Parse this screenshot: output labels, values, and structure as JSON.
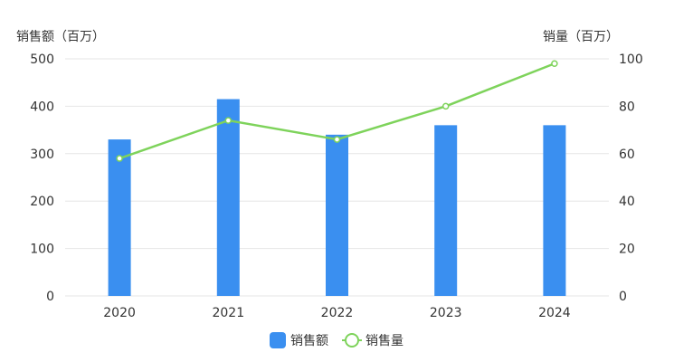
{
  "chart_data": {
    "type": "bar",
    "categories": [
      "2020",
      "2021",
      "2022",
      "2023",
      "2024"
    ],
    "series": [
      {
        "name": "销售额",
        "type": "bar",
        "axis": "left",
        "values": [
          330,
          415,
          340,
          360,
          360
        ]
      },
      {
        "name": "销售量",
        "type": "line",
        "axis": "right",
        "values": [
          58,
          74,
          66,
          80,
          98
        ]
      }
    ],
    "ylabel": "销售额（百万）",
    "y2label": "销量（百万）",
    "ylim": [
      0,
      500
    ],
    "y2lim": [
      0,
      100
    ],
    "yticks": [
      "0",
      "100",
      "200",
      "300",
      "400",
      "500"
    ],
    "y2ticks": [
      "0",
      "20",
      "40",
      "60",
      "80",
      "100"
    ],
    "grid": true,
    "legend_position": "bottom-center",
    "colors": {
      "bar": "#3a8ff0",
      "line": "#7ed35b",
      "grid": "#e6e6e6"
    }
  }
}
